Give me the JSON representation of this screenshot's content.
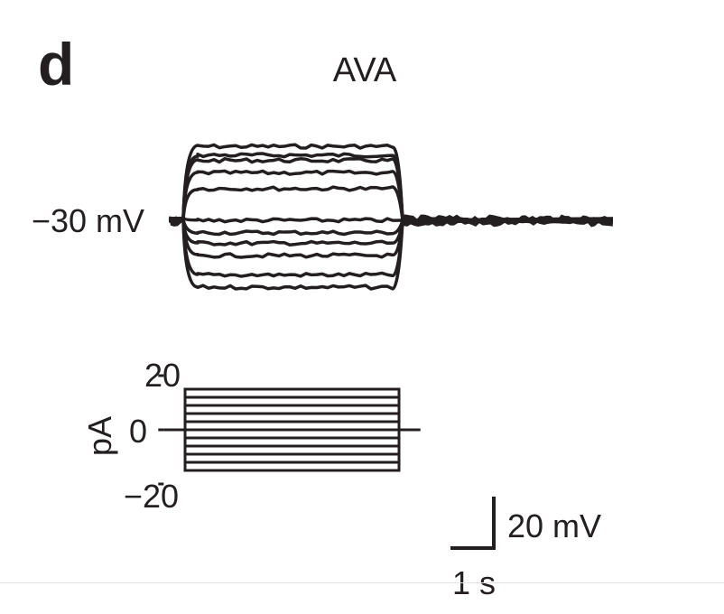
{
  "panel": {
    "label": "d",
    "neuron": "AVA"
  },
  "chart_data": [
    {
      "type": "line",
      "title": "AVA",
      "description_hidden": "",
      "holding_potential_label": "−30 mV",
      "holding_potential_mV": -30,
      "x_unit": "s",
      "y_unit": "mV",
      "stimulus_window_s": [
        0,
        2
      ],
      "recording_window_s": [
        -0.15,
        4
      ],
      "series": [
        {
          "stim_pA": 15,
          "plateau_mV": 12
        },
        {
          "stim_pA": 12,
          "plateau_mV": 7
        },
        {
          "stim_pA": 9,
          "plateau_mV": 4
        },
        {
          "stim_pA": 6,
          "plateau_mV": -3
        },
        {
          "stim_pA": 3,
          "plateau_mV": -12
        },
        {
          "stim_pA": 0,
          "plateau_mV": -30
        },
        {
          "stim_pA": -3,
          "plateau_mV": -37
        },
        {
          "stim_pA": -6,
          "plateau_mV": -43
        },
        {
          "stim_pA": -9,
          "plateau_mV": -50
        },
        {
          "stim_pA": -12,
          "plateau_mV": -61
        },
        {
          "stim_pA": -15,
          "plateau_mV": -68
        }
      ],
      "scale_bar": {
        "voltage_label": "20 mV",
        "voltage_mV": 20,
        "time_label": "1 s",
        "time_s": 1
      }
    },
    {
      "type": "line",
      "ylabel": "pA",
      "yticks": [
        {
          "value": 20,
          "label": "20"
        },
        {
          "value": 0,
          "label": "0"
        },
        {
          "value": -20,
          "label": "−20"
        }
      ],
      "ylim": [
        -20,
        20
      ],
      "stimulus_window_s": [
        0,
        2
      ],
      "baseline_window_s": [
        -0.2,
        2.2
      ],
      "step_amplitudes_pA": [
        15,
        12,
        9,
        6,
        3,
        0,
        -3,
        -6,
        -9,
        -12,
        -15
      ]
    }
  ]
}
